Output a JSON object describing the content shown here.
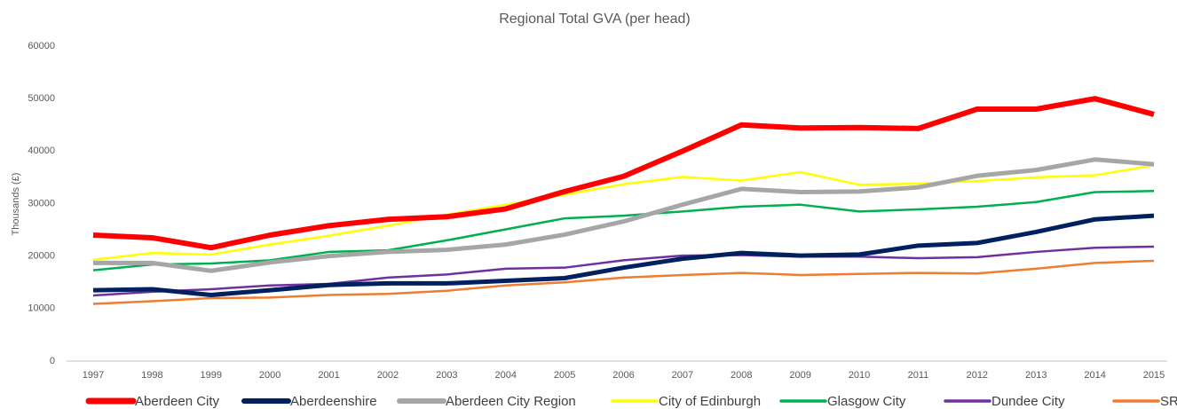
{
  "chart_data": {
    "type": "line",
    "title": "Regional Total GVA (per head)",
    "y_label": "Thousands (£)",
    "categories": [
      "1997",
      "1998",
      "1999",
      "2000",
      "2001",
      "2002",
      "2003",
      "2004",
      "2005",
      "2006",
      "2007",
      "2008",
      "2009",
      "2010",
      "2011",
      "2012",
      "2013",
      "2014",
      "2015"
    ],
    "ylim": [
      0,
      60000
    ],
    "yticks": [
      0,
      10000,
      20000,
      30000,
      40000,
      50000,
      60000
    ],
    "grid": false,
    "legend": "bottom",
    "series": [
      {
        "name": "Aberdeen City",
        "color": "#ff0000",
        "values": [
          24000,
          23500,
          21600,
          24000,
          25800,
          27000,
          27500,
          29000,
          32300,
          35200,
          40000,
          45000,
          44400,
          44500,
          44300,
          48000,
          48000,
          50000,
          47000
        ]
      },
      {
        "name": "Aberdeenshire",
        "color": "#002060",
        "values": [
          13500,
          13700,
          12600,
          13500,
          14500,
          14800,
          14800,
          15300,
          15800,
          17800,
          19500,
          20600,
          20100,
          20300,
          22000,
          22500,
          24600,
          27000,
          27700
        ]
      },
      {
        "name": "Aberdeen City Region",
        "color": "#a6a6a6",
        "values": [
          18700,
          18700,
          17200,
          18800,
          20000,
          20800,
          21200,
          22200,
          24100,
          26600,
          29800,
          32800,
          32200,
          32300,
          33100,
          35300,
          36400,
          38400,
          37500
        ]
      },
      {
        "name": "City of Edinburgh",
        "color": "#ffff00",
        "values": [
          19300,
          20600,
          20300,
          22200,
          23900,
          25800,
          27900,
          29800,
          31700,
          33700,
          35100,
          34400,
          36000,
          33600,
          33800,
          34300,
          35000,
          35400,
          37300
        ]
      },
      {
        "name": "Glasgow City",
        "color": "#00b050",
        "values": [
          17300,
          18400,
          18600,
          19200,
          20800,
          21100,
          23000,
          25100,
          27200,
          27700,
          28500,
          29400,
          29800,
          28500,
          28900,
          29400,
          30300,
          32200,
          32400
        ]
      },
      {
        "name": "Dundee City",
        "color": "#7030a0",
        "values": [
          12500,
          13200,
          13700,
          14400,
          14700,
          15900,
          16500,
          17600,
          17800,
          19200,
          20100,
          20200,
          19900,
          19900,
          19600,
          19800,
          20800,
          21600,
          21800
        ]
      },
      {
        "name": "SRA",
        "color": "#ed7d31",
        "values": [
          10900,
          11400,
          12000,
          12100,
          12600,
          12800,
          13400,
          14400,
          15000,
          15900,
          16400,
          16800,
          16400,
          16600,
          16800,
          16700,
          17600,
          18700,
          19100
        ]
      }
    ]
  }
}
